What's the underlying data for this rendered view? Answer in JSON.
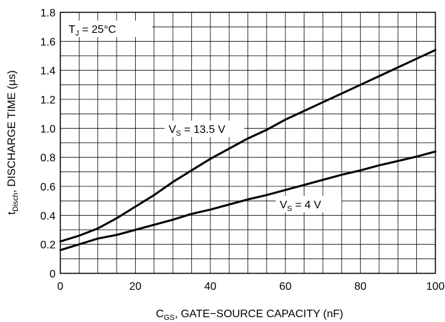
{
  "chart_data": {
    "type": "line",
    "title": "",
    "xlabel": {
      "main": "C",
      "sub": "GS",
      "rest": ", GATE−SOURCE CAPACITY (nF)"
    },
    "ylabel": {
      "main": "t",
      "sub": "Disch",
      "rest": ", DISCHARGE TIME (μs)"
    },
    "xlim": [
      0,
      100
    ],
    "ylim": [
      0,
      1.8
    ],
    "x_ticks": [
      "0",
      "20",
      "40",
      "60",
      "80",
      "100"
    ],
    "y_ticks": [
      "0",
      "0.2",
      "0.4",
      "0.6",
      "0.8",
      "1.0",
      "1.2",
      "1.4",
      "1.6",
      "1.8"
    ],
    "grid": true,
    "x_minor_step": 5,
    "y_minor_step": 0.1,
    "condition": {
      "main": "T",
      "sub": "J",
      "rest": " = 25°C"
    },
    "series": [
      {
        "name": {
          "main": "V",
          "sub": "S",
          "rest": " = 13.5 V"
        },
        "x": [
          0,
          5,
          10,
          15,
          20,
          25,
          30,
          35,
          40,
          45,
          50,
          55,
          60,
          65,
          70,
          75,
          80,
          85,
          90,
          95,
          100
        ],
        "y": [
          0.22,
          0.26,
          0.31,
          0.38,
          0.46,
          0.54,
          0.63,
          0.71,
          0.79,
          0.86,
          0.93,
          0.99,
          1.06,
          1.12,
          1.18,
          1.24,
          1.3,
          1.36,
          1.42,
          1.48,
          1.54
        ]
      },
      {
        "name": {
          "main": "V",
          "sub": "S",
          "rest": " = 4 V"
        },
        "x": [
          0,
          5,
          10,
          15,
          20,
          25,
          30,
          35,
          40,
          45,
          50,
          55,
          60,
          65,
          70,
          75,
          80,
          85,
          90,
          95,
          100
        ],
        "y": [
          0.16,
          0.2,
          0.24,
          0.265,
          0.3,
          0.335,
          0.37,
          0.41,
          0.44,
          0.475,
          0.51,
          0.54,
          0.575,
          0.61,
          0.645,
          0.68,
          0.71,
          0.745,
          0.775,
          0.805,
          0.84
        ]
      }
    ]
  }
}
